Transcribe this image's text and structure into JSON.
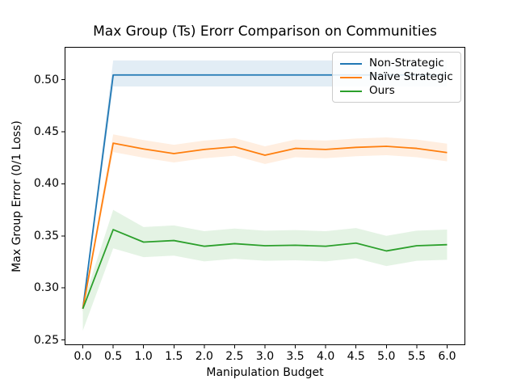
{
  "figure": {
    "title": "Max Group (Ts) Erorr Comparison on Communities",
    "xlabel": "Manipulation Budget",
    "ylabel": "Max Group Error (0/1 Loss)"
  },
  "legend": {
    "position": "upper right",
    "items": [
      {
        "label": "Non-Strategic",
        "color": "#1f77b4"
      },
      {
        "label": "Naïve Strategic",
        "color": "#ff7f0e"
      },
      {
        "label": "Ours",
        "color": "#2ca02c"
      }
    ]
  },
  "chart_data": {
    "type": "line",
    "title": "Max Group (Ts) Erorr Comparison on Communities",
    "xlabel": "Manipulation Budget",
    "ylabel": "Max Group Error (0/1 Loss)",
    "grid": false,
    "xlim": [
      -0.3,
      6.3
    ],
    "ylim": [
      0.245,
      0.5315
    ],
    "xticks": [
      0,
      0.5,
      1,
      1.5,
      2,
      2.5,
      3,
      3.5,
      4,
      4.5,
      5,
      5.5,
      6
    ],
    "xtick_labels": [
      "0.0",
      "0.5",
      "1.0",
      "1.5",
      "2.0",
      "2.5",
      "3.0",
      "3.5",
      "4.0",
      "4.5",
      "5.0",
      "5.5",
      "6.0"
    ],
    "yticks": [
      0.25,
      0.3,
      0.35,
      0.4,
      0.45,
      0.5
    ],
    "ytick_labels": [
      "0.25",
      "0.30",
      "0.35",
      "0.40",
      "0.45",
      "0.50"
    ],
    "band_opacity": 0.13,
    "x": [
      0,
      0.5,
      1,
      1.5,
      2,
      2.5,
      3,
      3.5,
      4,
      4.5,
      5,
      5.5,
      6
    ],
    "series": [
      {
        "name": "Non-Strategic",
        "color": "#1f77b4",
        "values": [
          0.28,
          0.5045,
          0.5045,
          0.5045,
          0.5045,
          0.5045,
          0.5045,
          0.5045,
          0.5045,
          0.5045,
          0.5045,
          0.5045,
          0.5045
        ],
        "band_lower": [
          0.277,
          0.4935,
          0.4935,
          0.4935,
          0.4935,
          0.4935,
          0.4935,
          0.4935,
          0.4935,
          0.4935,
          0.4935,
          0.4935,
          0.4935
        ],
        "band_upper": [
          0.283,
          0.5185,
          0.5185,
          0.5185,
          0.5185,
          0.5185,
          0.5185,
          0.5185,
          0.5185,
          0.5185,
          0.5185,
          0.5185,
          0.5185
        ]
      },
      {
        "name": "Naïve Strategic",
        "color": "#ff7f0e",
        "values": [
          0.28,
          0.439,
          0.4335,
          0.429,
          0.433,
          0.4355,
          0.4275,
          0.434,
          0.433,
          0.435,
          0.436,
          0.434,
          0.43
        ],
        "band_lower": [
          0.277,
          0.4305,
          0.425,
          0.4205,
          0.4245,
          0.427,
          0.419,
          0.4255,
          0.4245,
          0.4265,
          0.4275,
          0.4255,
          0.4215
        ],
        "band_upper": [
          0.283,
          0.4475,
          0.442,
          0.4375,
          0.4415,
          0.444,
          0.436,
          0.4425,
          0.4415,
          0.4435,
          0.4445,
          0.4425,
          0.4385
        ]
      },
      {
        "name": "Ours",
        "color": "#2ca02c",
        "values": [
          0.28,
          0.356,
          0.344,
          0.3455,
          0.34,
          0.3425,
          0.3405,
          0.341,
          0.34,
          0.343,
          0.3355,
          0.3405,
          0.3415
        ],
        "band_lower": [
          0.259,
          0.338,
          0.3295,
          0.331,
          0.3255,
          0.328,
          0.326,
          0.3265,
          0.3255,
          0.3285,
          0.321,
          0.326,
          0.327
        ],
        "band_upper": [
          0.285,
          0.375,
          0.3585,
          0.36,
          0.3545,
          0.357,
          0.355,
          0.3555,
          0.3545,
          0.3575,
          0.35,
          0.355,
          0.356
        ]
      }
    ]
  }
}
